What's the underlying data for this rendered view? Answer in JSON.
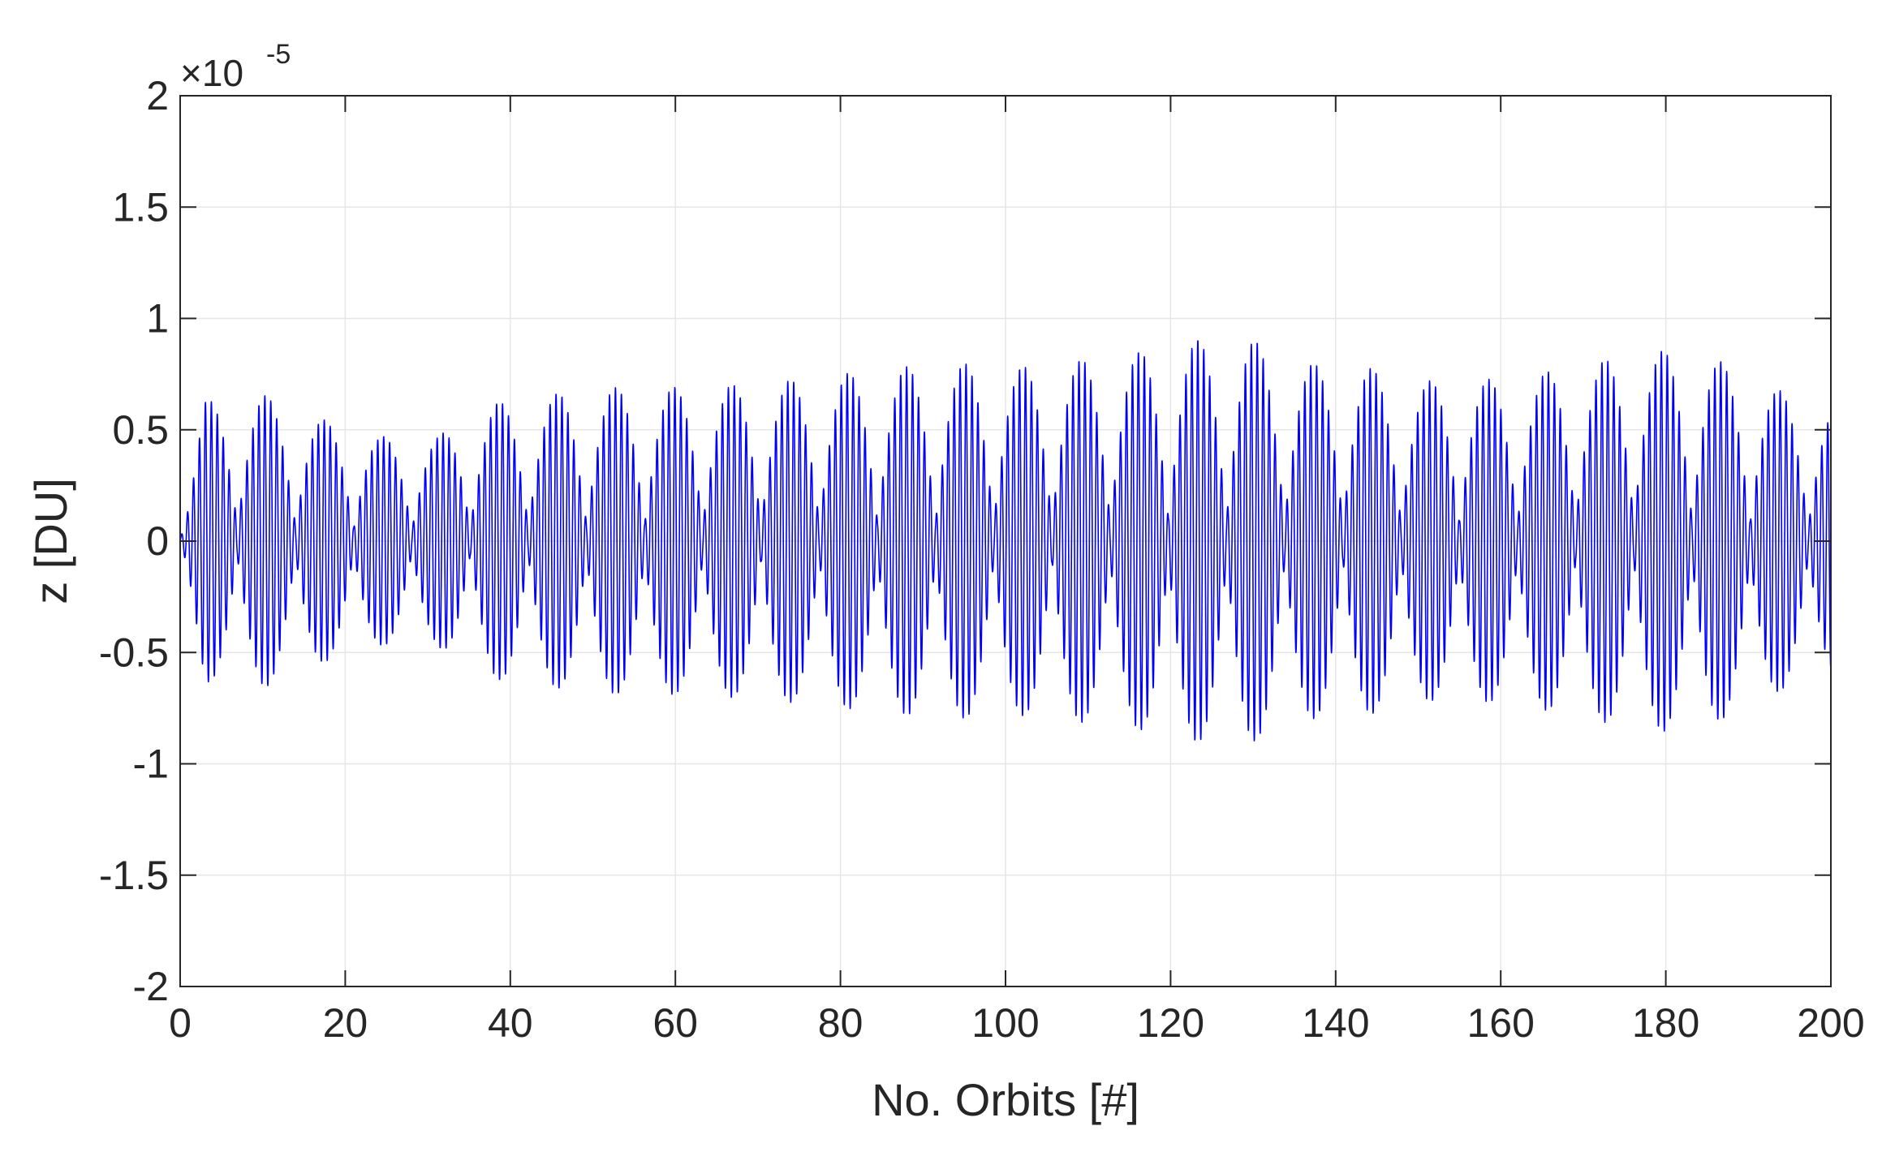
{
  "chart_data": {
    "type": "line",
    "xlabel": "No. Orbits [#]",
    "ylabel": "z [DU]",
    "xlim": [
      0,
      200
    ],
    "ylim": [
      -2,
      2
    ],
    "y_scale_exponent": {
      "base": "×10",
      "power": "-5"
    },
    "xticks": [
      "0",
      "20",
      "40",
      "60",
      "80",
      "100",
      "120",
      "140",
      "160",
      "180",
      "200"
    ],
    "yticks": [
      "-2",
      "-1.5",
      "-1",
      "-0.5",
      "0",
      "0.5",
      "1",
      "1.5",
      "2"
    ],
    "grid": true,
    "series": [
      {
        "color": "#0000ff",
        "oscillation_period_orbits": 0.72,
        "beat_period_orbits": 7.05,
        "envelope": {
          "x": [
            0,
            3,
            10,
            17,
            24,
            31,
            38,
            45,
            52,
            59,
            66,
            73,
            80,
            87,
            94,
            101,
            108,
            115,
            122,
            129,
            136,
            143,
            150,
            157,
            164,
            171,
            178,
            185,
            192,
            200
          ],
          "peak": [
            0.1,
            0.63,
            0.66,
            0.55,
            0.47,
            0.47,
            0.62,
            0.66,
            0.69,
            0.69,
            0.7,
            0.72,
            0.75,
            0.78,
            0.8,
            0.78,
            0.81,
            0.84,
            0.9,
            0.92,
            0.8,
            0.79,
            0.72,
            0.72,
            0.75,
            0.8,
            0.86,
            0.84,
            0.7,
            0.6
          ]
        }
      }
    ]
  }
}
